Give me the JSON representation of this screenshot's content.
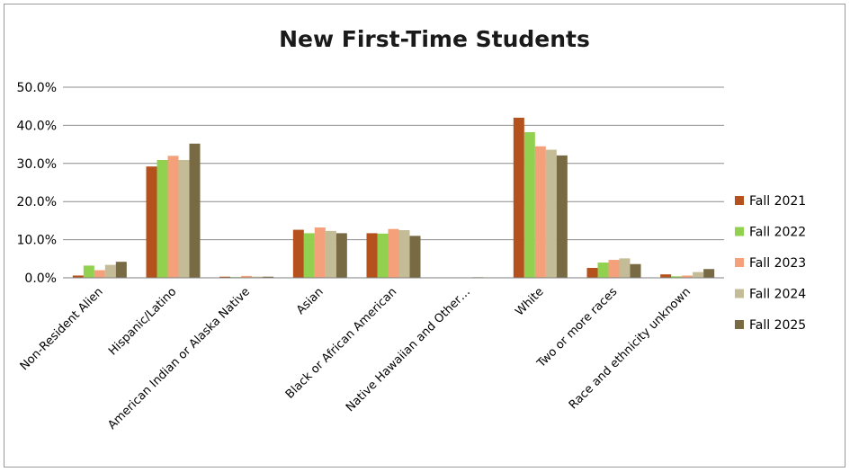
{
  "chart_data": {
    "type": "bar",
    "title": "New First-Time Students",
    "xlabel": "",
    "ylabel": "",
    "ylim": [
      0,
      50
    ],
    "yticks": [
      "0.0%",
      "10.0%",
      "20.0%",
      "30.0%",
      "40.0%",
      "50.0%"
    ],
    "grid": true,
    "legend_position": "right",
    "categories": [
      "Non-Resident Alien",
      "Hispanic/Latino",
      "American Indian or Alaska Native",
      "Asian",
      "Black or African American",
      "Native Hawaiian and Other…",
      "White",
      "Two or more races",
      "Race and ethnicity unknown"
    ],
    "series": [
      {
        "name": "Fall 2021",
        "color": "#b5511c",
        "values": [
          0.6,
          29.2,
          0.3,
          12.6,
          11.7,
          0.0,
          42.0,
          2.6,
          0.9
        ]
      },
      {
        "name": "Fall 2022",
        "color": "#92d050",
        "values": [
          3.2,
          30.9,
          0.2,
          11.7,
          11.6,
          0.0,
          38.2,
          4.0,
          0.4
        ]
      },
      {
        "name": "Fall 2023",
        "color": "#f4a07a",
        "values": [
          2.0,
          32.0,
          0.5,
          13.2,
          12.8,
          0.1,
          34.5,
          4.7,
          0.6
        ]
      },
      {
        "name": "Fall 2024",
        "color": "#c4bc96",
        "values": [
          3.4,
          30.9,
          0.3,
          12.3,
          12.5,
          0.2,
          33.6,
          5.1,
          1.5
        ]
      },
      {
        "name": "Fall 2025",
        "color": "#786a43",
        "values": [
          4.2,
          35.2,
          0.3,
          11.7,
          11.0,
          0.0,
          32.1,
          3.6,
          2.3
        ]
      }
    ]
  }
}
